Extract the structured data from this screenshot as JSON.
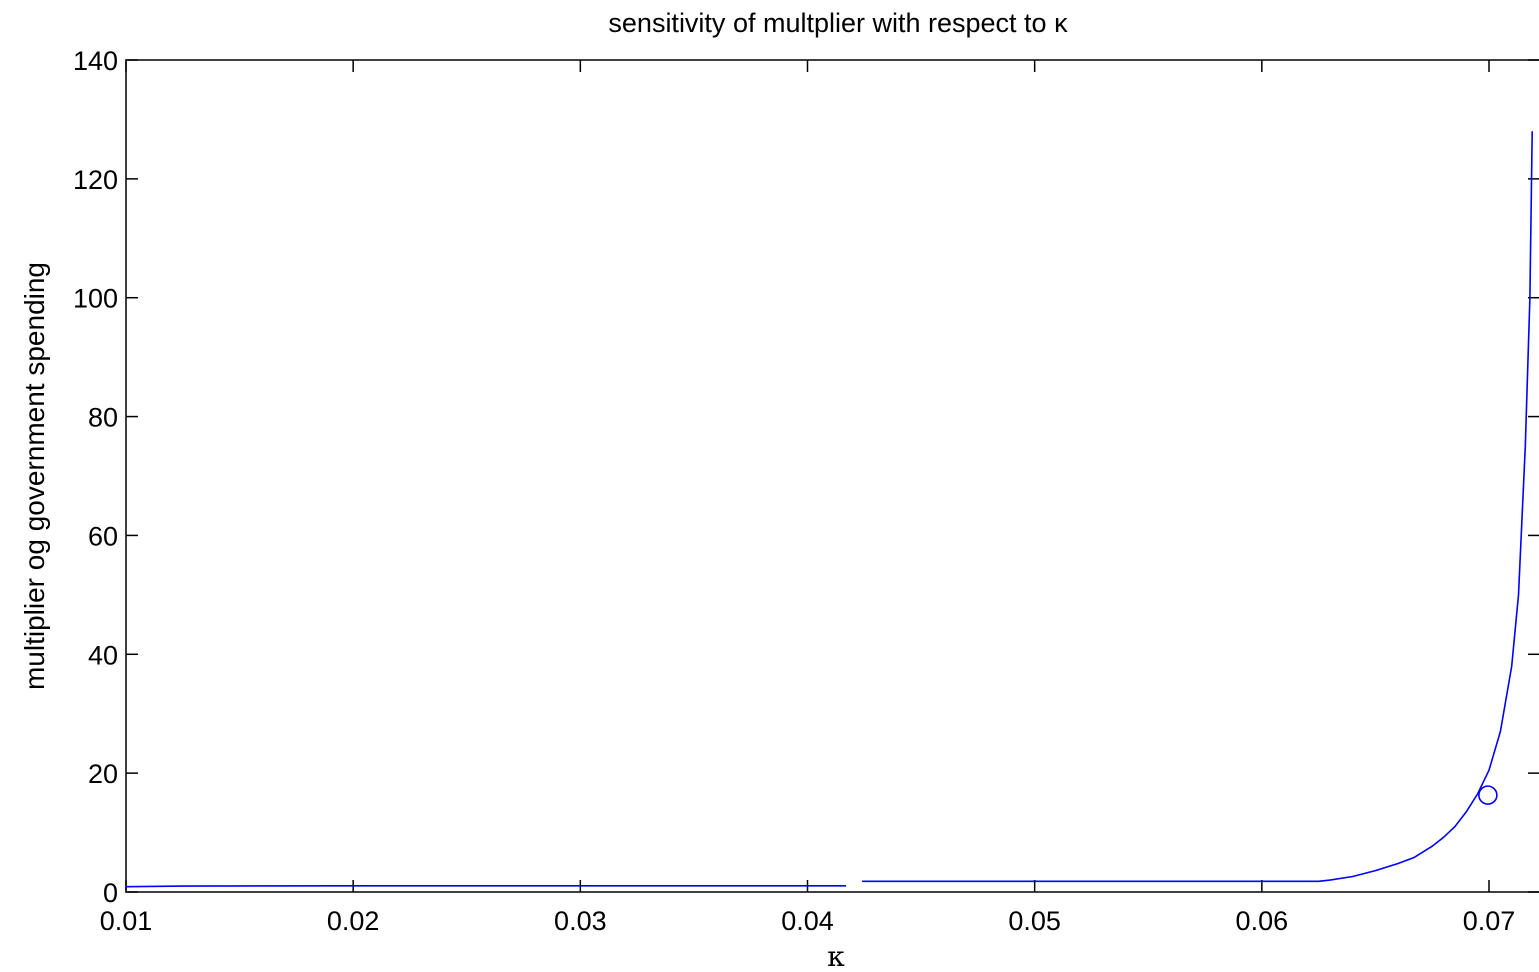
{
  "chart_data": {
    "type": "line",
    "title": "sensitivity of multplier with respect to κ",
    "xlabel": "κ",
    "ylabel": "multiplier og government spending",
    "xlim": [
      0.01,
      0.072
    ],
    "ylim": [
      0,
      140
    ],
    "xticks": [
      0.01,
      0.02,
      0.03,
      0.04,
      0.05,
      0.06,
      0.07
    ],
    "xtick_labels": [
      "0.01",
      "0.02",
      "0.03",
      "0.04",
      "0.05",
      "0.06",
      "0.07"
    ],
    "yticks": [
      0,
      20,
      40,
      60,
      80,
      100,
      120,
      140
    ],
    "ytick_labels": [
      "0",
      "20",
      "40",
      "60",
      "80",
      "100",
      "120",
      "140"
    ],
    "grid": false,
    "line_color": "#0000ff",
    "series": [
      {
        "segments": [
          {
            "x": [
              0.01,
              0.0125,
              0.02,
              0.03,
              0.04,
              0.0417
            ],
            "y": [
              0.9,
              1.0,
              1.05,
              1.05,
              1.05,
              1.05
            ]
          },
          {
            "x": [
              0.0424,
              0.045,
              0.05,
              0.055,
              0.06,
              0.0625,
              0.063,
              0.064,
              0.065,
              0.066,
              0.0667,
              0.0675,
              0.068,
              0.0685,
              0.069,
              0.0695,
              0.07,
              0.0705,
              0.071,
              0.0713,
              0.0716,
              0.0718,
              0.0719
            ],
            "y": [
              1.8,
              1.8,
              1.8,
              1.8,
              1.8,
              1.8,
              2.0,
              2.6,
              3.6,
              4.8,
              5.8,
              7.7,
              9.2,
              11.0,
              13.5,
              16.5,
              20.5,
              27.0,
              38.0,
              50.0,
              75.0,
              100.0,
              128.0
            ]
          }
        ]
      }
    ],
    "markers": [
      {
        "x": 0.06995,
        "y": 16.3,
        "shape": "circle"
      }
    ]
  }
}
